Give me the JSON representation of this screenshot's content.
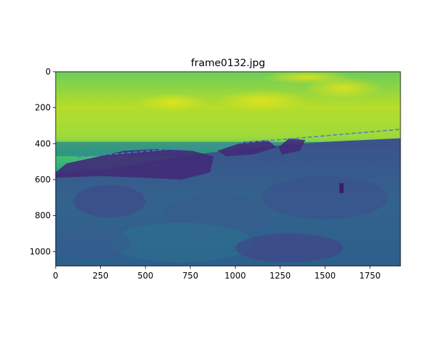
{
  "chart_data": {
    "type": "image",
    "title": "frame0132.jpg",
    "xlabel": "",
    "ylabel": "",
    "xlim": [
      0,
      1920
    ],
    "ylim": [
      1080,
      0
    ],
    "xticks": [
      0,
      250,
      500,
      750,
      1000,
      1250,
      1500,
      1750
    ],
    "yticks": [
      0,
      200,
      400,
      600,
      800,
      1000
    ],
    "colormap": "viridis",
    "overlay_line": {
      "style": "dashed",
      "color": "#4a7fd0",
      "points": [
        [
          120,
          475
        ],
        [
          1920,
          320
        ]
      ]
    }
  }
}
